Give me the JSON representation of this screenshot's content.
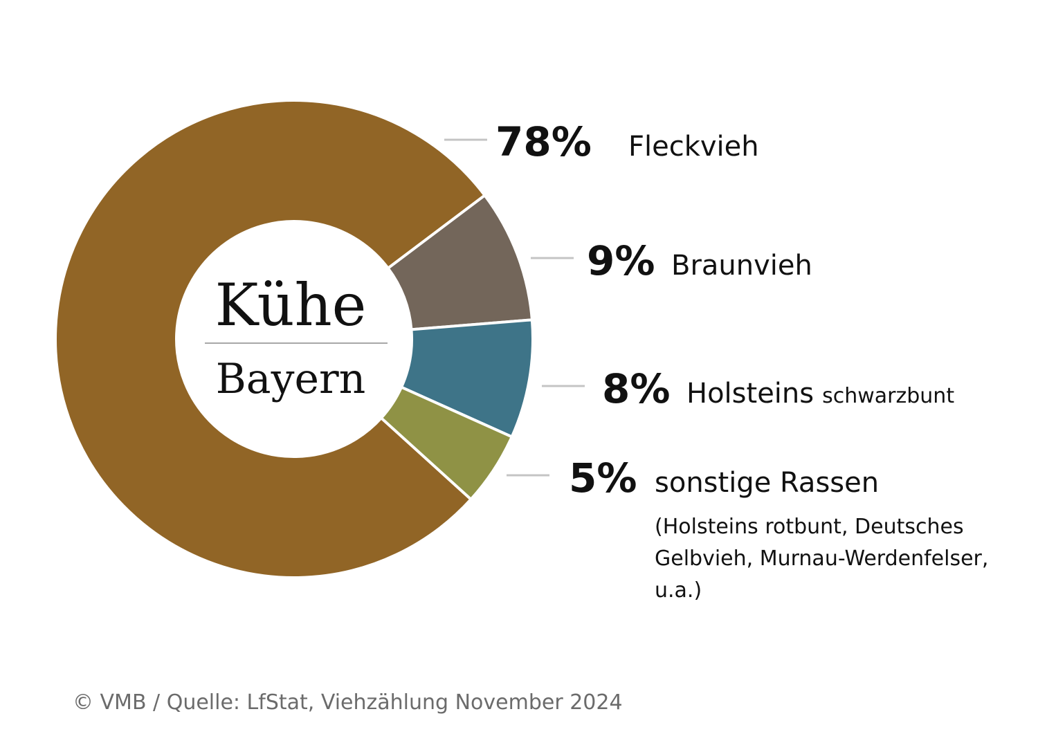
{
  "chart_data": {
    "type": "pie",
    "variant": "donut",
    "center_title": "Kühe",
    "center_subtitle": "Bayern",
    "slices": [
      {
        "label": "Fleckvieh",
        "label_suffix": "",
        "value": 78,
        "display": "78%",
        "color": "#916526"
      },
      {
        "label": "Braunvieh",
        "label_suffix": "",
        "value": 9,
        "display": "9%",
        "color": "#73665a"
      },
      {
        "label": "Holsteins",
        "label_suffix": "schwarzbunt",
        "value": 8,
        "display": "8%",
        "color": "#3e7488"
      },
      {
        "label": "sonstige Rassen",
        "label_suffix": "",
        "value": 5,
        "display": "5%",
        "color": "#8f9245"
      }
    ],
    "other_note": [
      "(Holsteins rotbunt, Deutsches",
      "Gelbvieh, Murnau-Werdenfelser,",
      "u.a.)"
    ],
    "legend": "right"
  },
  "source": "© VMB / Quelle: LfStat, Viehzählung November 2024"
}
